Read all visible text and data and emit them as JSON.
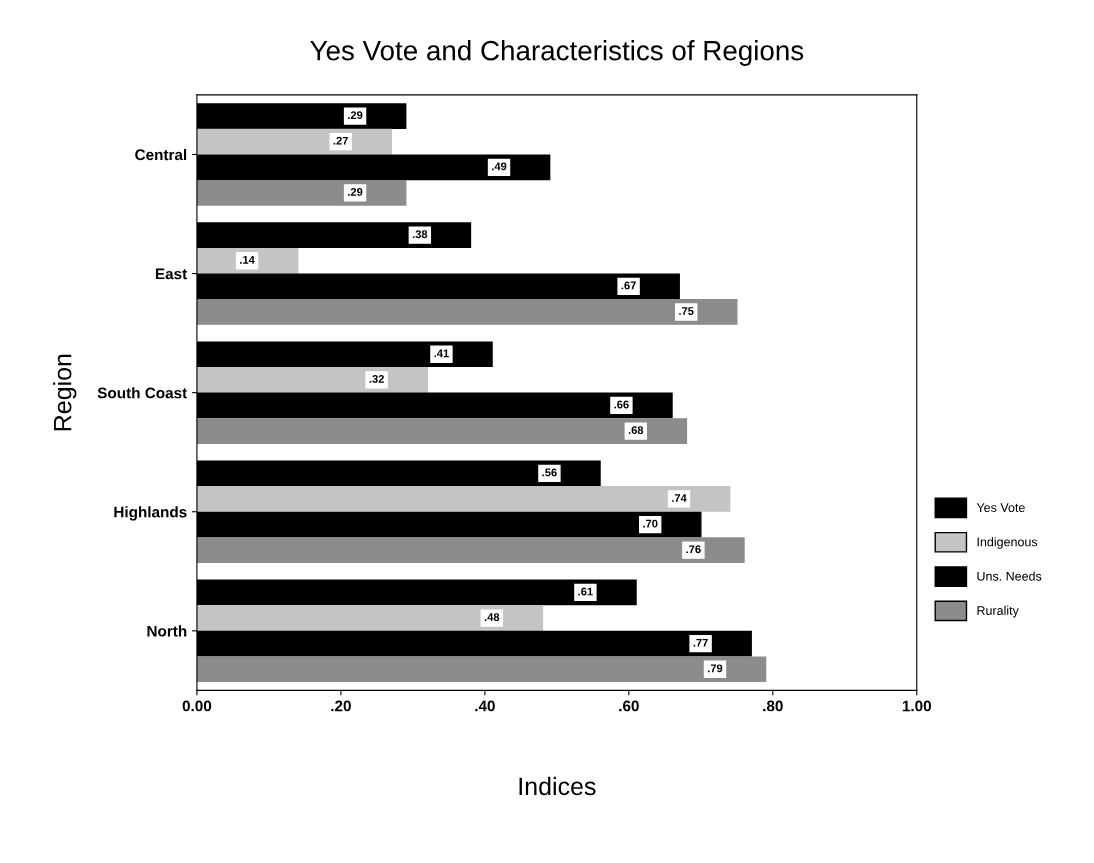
{
  "chart_data": {
    "type": "bar",
    "orientation": "horizontal",
    "title": "Yes Vote and Characteristics of Regions",
    "xlabel": "Indices",
    "ylabel": "Region",
    "categories": [
      "Central",
      "East",
      "South Coast",
      "Highlands",
      "North"
    ],
    "series": [
      {
        "name": "Yes Vote",
        "color": "#000000",
        "values": [
          0.29,
          0.38,
          0.41,
          0.56,
          0.61
        ],
        "value_labels": [
          ".29",
          ".38",
          ".41",
          ".56",
          ".61"
        ]
      },
      {
        "name": "Indigenous",
        "color": "#c4c4c4",
        "values": [
          0.27,
          0.14,
          0.32,
          0.74,
          0.48
        ],
        "value_labels": [
          ".27",
          ".14",
          ".32",
          ".74",
          ".48"
        ]
      },
      {
        "name": "Uns. Needs",
        "color": "#000000",
        "values": [
          0.49,
          0.67,
          0.66,
          0.7,
          0.77
        ],
        "value_labels": [
          ".49",
          ".67",
          ".66",
          ".70",
          ".77"
        ]
      },
      {
        "name": "Rurality",
        "color": "#8c8c8c",
        "values": [
          0.29,
          0.75,
          0.68,
          0.76,
          0.79
        ],
        "value_labels": [
          ".29",
          ".75",
          ".68",
          ".76",
          ".79"
        ]
      }
    ],
    "xlim": [
      0,
      1
    ],
    "xticks": [
      {
        "value": 0,
        "label": "0.00"
      },
      {
        "value": 0.2,
        "label": ".20"
      },
      {
        "value": 0.4,
        "label": ".40"
      },
      {
        "value": 0.6,
        "label": ".60"
      },
      {
        "value": 0.8,
        "label": ".80"
      },
      {
        "value": 1,
        "label": "1.00"
      }
    ],
    "legend": "right",
    "grid": false
  }
}
